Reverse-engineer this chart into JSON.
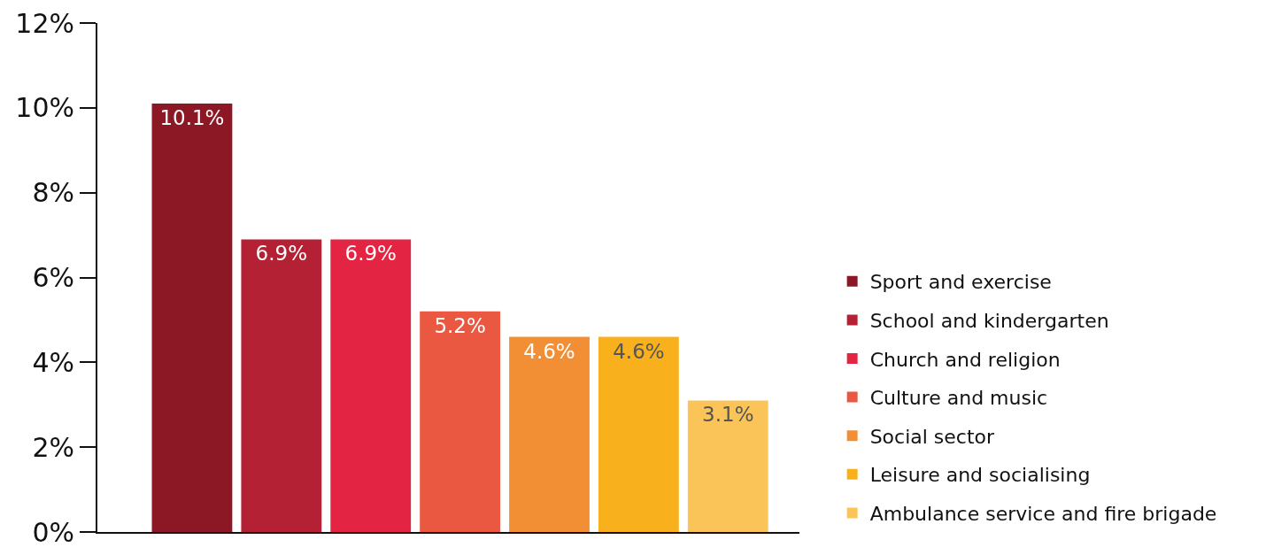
{
  "chart_data": {
    "type": "bar",
    "categories": [
      null,
      null,
      null,
      null,
      null,
      null,
      null
    ],
    "series": [
      {
        "name": "Sport and exercise",
        "color": "#8b1824",
        "values": [
          10.1,
          null,
          null,
          null,
          null,
          null,
          null
        ],
        "value_labels": [
          "10.1%",
          null,
          null,
          null,
          null,
          null,
          null
        ]
      },
      {
        "name": "School and kindergarten",
        "color": "#b52134",
        "values": [
          null,
          6.9,
          null,
          null,
          null,
          null,
          null
        ],
        "value_labels": [
          null,
          "6.9%",
          null,
          null,
          null,
          null,
          null
        ]
      },
      {
        "name": "Church and religion",
        "color": "#e32442",
        "values": [
          null,
          null,
          6.9,
          null,
          null,
          null,
          null
        ],
        "value_labels": [
          null,
          null,
          "6.9%",
          null,
          null,
          null,
          null
        ]
      },
      {
        "name": "Culture and music",
        "color": "#ea5842",
        "values": [
          null,
          null,
          null,
          5.2,
          null,
          null,
          null
        ],
        "value_labels": [
          null,
          null,
          null,
          "5.2%",
          null,
          null,
          null
        ]
      },
      {
        "name": "Social sector",
        "color": "#f28f35",
        "values": [
          null,
          null,
          null,
          null,
          4.6,
          null,
          null
        ],
        "value_labels": [
          null,
          null,
          null,
          null,
          "4.6%",
          null,
          null
        ]
      },
      {
        "name": "Leisure and socialising",
        "color": "#f8b11c",
        "values": [
          null,
          null,
          null,
          null,
          null,
          4.6,
          null
        ],
        "value_labels": [
          null,
          null,
          null,
          null,
          null,
          "4.6%",
          null
        ]
      },
      {
        "name": "Ambulance service and fire brigade",
        "color": "#fbc459",
        "values": [
          null,
          null,
          null,
          null,
          null,
          null,
          3.1
        ],
        "value_labels": [
          null,
          null,
          null,
          null,
          null,
          null,
          "3.1%"
        ]
      }
    ],
    "ylim": [
      0,
      12
    ],
    "yticks": [
      {
        "value": 0,
        "label": "0%"
      },
      {
        "value": 2,
        "label": "2%"
      },
      {
        "value": 4,
        "label": "4%"
      },
      {
        "value": 6,
        "label": "6%"
      },
      {
        "value": 8,
        "label": "8%"
      },
      {
        "value": 10,
        "label": "10%"
      },
      {
        "value": 12,
        "label": "12%"
      }
    ],
    "grid": false,
    "legend": "right",
    "tick_labels": "y"
  }
}
